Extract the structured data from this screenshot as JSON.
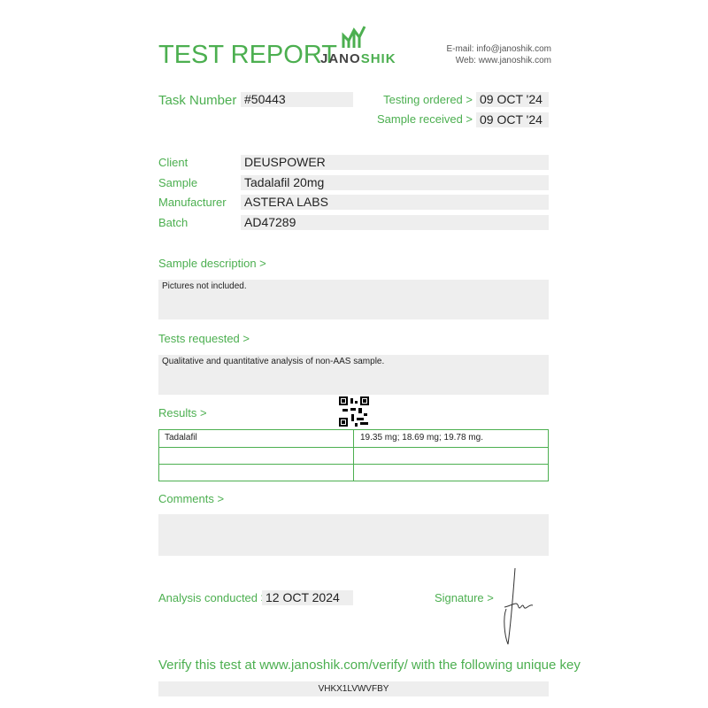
{
  "header": {
    "title": "TEST REPORT",
    "logo_left": "JANO",
    "logo_right": "SHIK",
    "email": "E-mail: info@janoshik.com",
    "web": "Web: www.janoshik.com"
  },
  "task": {
    "label": "Task Number",
    "value": "#50443"
  },
  "dates": [
    {
      "label": "Testing ordered  >",
      "value": "09 OCT '24"
    },
    {
      "label": "Sample received >",
      "value": "09 OCT '24"
    }
  ],
  "info": [
    {
      "label": "Client",
      "value": "DEUSPOWER"
    },
    {
      "label": "Sample",
      "value": "Tadalafil 20mg"
    },
    {
      "label": "Manufacturer",
      "value": "ASTERA LABS"
    },
    {
      "label": "Batch",
      "value": "AD47289"
    }
  ],
  "sample_description": {
    "label": "Sample description >",
    "text": "Pictures not included."
  },
  "tests_requested": {
    "label": "Tests requested >",
    "text": "Qualitative and quantitative analysis of non-AAS sample."
  },
  "results": {
    "label": "Results >",
    "rows": [
      [
        "Tadalafil",
        "19.35 mg; 18.69 mg; 19.78 mg."
      ]
    ]
  },
  "comments": {
    "label": "Comments >"
  },
  "analysis": {
    "label": "Analysis conducted >",
    "value": "12 OCT 2024"
  },
  "signature": {
    "label": "Signature >"
  },
  "verify": {
    "text": "Verify this test at www.janoshik.com/verify/ with the following unique key",
    "key": "VHKX1LVWVFBY"
  }
}
